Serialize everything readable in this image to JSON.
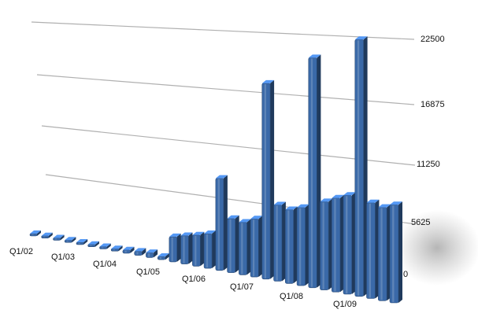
{
  "chart_data": {
    "type": "bar",
    "style": "3d",
    "grid": true,
    "legend": "none",
    "title": "",
    "xlabel": "",
    "ylabel": "",
    "ylim": [
      0,
      22500
    ],
    "y_ticks": [
      "0",
      "5625",
      "11250",
      "16875",
      "22500"
    ],
    "x_tick_labels": [
      "Q1/02",
      "Q1/03",
      "Q1/04",
      "Q1/05",
      "Q1/06",
      "Q1/07",
      "Q1/08",
      "Q1/09"
    ],
    "bar_color": "#3a69a8",
    "series": [
      {
        "values": [
          150,
          150,
          150,
          150,
          150,
          150,
          150,
          150,
          600,
          700,
          800,
          500,
          3700,
          4000,
          4200,
          4500,
          11500,
          6500,
          6100,
          6500,
          21200,
          8000,
          7500,
          7700,
          22000,
          8200,
          8500,
          8700,
          22000,
          8000,
          7600,
          7800
        ]
      }
    ]
  }
}
